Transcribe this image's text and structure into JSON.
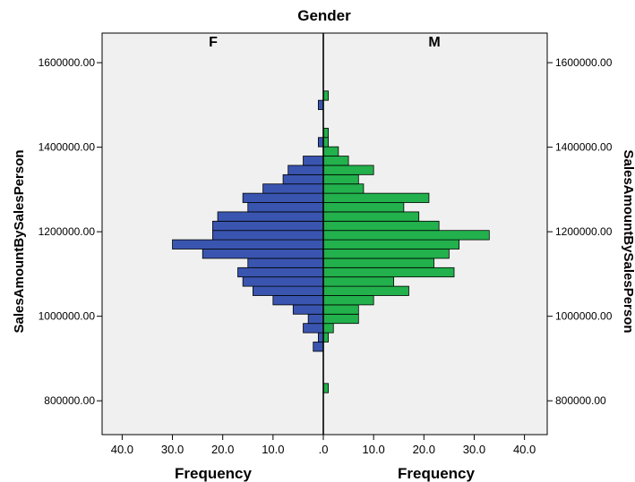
{
  "chart_data": {
    "type": "bar",
    "orientation": "horizontal-population-pyramid",
    "title": "Gender",
    "panels": [
      "F",
      "M"
    ],
    "ylabel_left": "SalesAmountBySalesPerson",
    "ylabel_right": "SalesAmountBySalesPerson",
    "xlabel_left": "Frequency",
    "xlabel_right": "Frequency",
    "ylim": [
      720000,
      1670000
    ],
    "xlim": [
      0,
      45
    ],
    "yticks": [
      {
        "value": 800000,
        "label": "800000.00"
      },
      {
        "value": 1000000,
        "label": "1000000.00"
      },
      {
        "value": 1200000,
        "label": "1200000.00"
      },
      {
        "value": 1400000,
        "label": "1400000.00"
      },
      {
        "value": 1600000,
        "label": "1600000.00"
      }
    ],
    "xticks_left": [
      {
        "value": 40,
        "label": "40.0"
      },
      {
        "value": 30,
        "label": "30.0"
      },
      {
        "value": 20,
        "label": "20.0"
      },
      {
        "value": 10,
        "label": "10.0"
      },
      {
        "value": 0,
        "label": ".0"
      }
    ],
    "xticks_right": [
      {
        "value": 10,
        "label": "10.0"
      },
      {
        "value": 20,
        "label": "20.0"
      },
      {
        "value": 30,
        "label": "30.0"
      },
      {
        "value": 40,
        "label": "40.0"
      }
    ],
    "bin_width": 22000,
    "bins": [
      {
        "y": 928000,
        "F": 2,
        "M": 0
      },
      {
        "y": 950000,
        "F": 1,
        "M": 1
      },
      {
        "y": 972000,
        "F": 4,
        "M": 2
      },
      {
        "y": 994000,
        "F": 3,
        "M": 7
      },
      {
        "y": 1016000,
        "F": 6,
        "M": 7
      },
      {
        "y": 1038000,
        "F": 10,
        "M": 10
      },
      {
        "y": 1060000,
        "F": 14,
        "M": 17
      },
      {
        "y": 1082000,
        "F": 16,
        "M": 14
      },
      {
        "y": 1104000,
        "F": 17,
        "M": 26
      },
      {
        "y": 1126000,
        "F": 15,
        "M": 22
      },
      {
        "y": 1148000,
        "F": 24,
        "M": 25
      },
      {
        "y": 1170000,
        "F": 30,
        "M": 27
      },
      {
        "y": 1192000,
        "F": 22,
        "M": 33
      },
      {
        "y": 1214000,
        "F": 22,
        "M": 23
      },
      {
        "y": 1236000,
        "F": 21,
        "M": 19
      },
      {
        "y": 1258000,
        "F": 15,
        "M": 16
      },
      {
        "y": 1280000,
        "F": 16,
        "M": 21
      },
      {
        "y": 1302000,
        "F": 12,
        "M": 8
      },
      {
        "y": 1324000,
        "F": 8,
        "M": 7
      },
      {
        "y": 1346000,
        "F": 7,
        "M": 10
      },
      {
        "y": 1368000,
        "F": 4,
        "M": 5
      },
      {
        "y": 1390000,
        "F": 0,
        "M": 3
      },
      {
        "y": 1412000,
        "F": 1,
        "M": 1
      },
      {
        "y": 1434000,
        "F": 0,
        "M": 1
      },
      {
        "y": 1500000,
        "F": 1,
        "M": 0
      },
      {
        "y": 1522000,
        "F": 0,
        "M": 1
      },
      {
        "y": 830000,
        "F": 0,
        "M": 1
      }
    ],
    "colors": {
      "F": "#3a55b0",
      "M": "#22b14c",
      "plot_bg": "#f0f0f0",
      "border": "#000000"
    },
    "grid": false
  }
}
